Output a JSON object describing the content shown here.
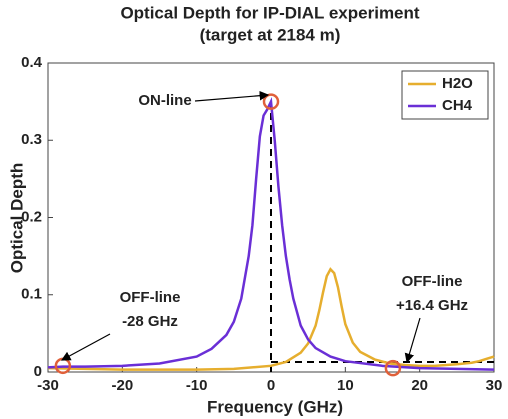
{
  "chart_data": {
    "type": "line",
    "title": [
      "Optical Depth for IP-DIAL experiment",
      "(target at 2184 m)"
    ],
    "xlabel": "Frequency (GHz)",
    "ylabel": "Optical Depth",
    "xlim": [
      -30,
      30
    ],
    "xticks": [
      -30,
      -20,
      -10,
      0,
      10,
      20,
      30
    ],
    "ylim": [
      0,
      0.4
    ],
    "yticks": [
      0,
      0.1,
      0.2,
      0.3,
      0.4
    ],
    "legend": "upper right",
    "series": [
      {
        "name": "H2O",
        "color": "#e6ae2e",
        "x": [
          -30,
          -25,
          -20,
          -15,
          -10,
          -5,
          0,
          2,
          4,
          5,
          6,
          6.5,
          7,
          7.5,
          8,
          8.5,
          9,
          9.5,
          10,
          11,
          12,
          14,
          16,
          18,
          20,
          22,
          25,
          27,
          28,
          29,
          30
        ],
        "values": [
          0.005,
          0.004,
          0.003,
          0.003,
          0.003,
          0.004,
          0.008,
          0.013,
          0.025,
          0.037,
          0.06,
          0.08,
          0.103,
          0.124,
          0.133,
          0.128,
          0.11,
          0.085,
          0.062,
          0.038,
          0.026,
          0.016,
          0.011,
          0.009,
          0.008,
          0.008,
          0.01,
          0.012,
          0.014,
          0.017,
          0.02
        ]
      },
      {
        "name": "CH4",
        "color": "#6a2fd6",
        "x": [
          -30,
          -28,
          -25,
          -20,
          -15,
          -10,
          -8,
          -6,
          -5,
          -4,
          -3,
          -2.5,
          -2,
          -1.5,
          -1,
          -0.5,
          0,
          0.5,
          1,
          1.5,
          2,
          2.5,
          3,
          4,
          5,
          6,
          8,
          10,
          15,
          20,
          25,
          30
        ],
        "values": [
          0.006,
          0.007,
          0.007,
          0.008,
          0.011,
          0.02,
          0.03,
          0.048,
          0.065,
          0.095,
          0.15,
          0.19,
          0.25,
          0.305,
          0.332,
          0.34,
          0.35,
          0.3,
          0.24,
          0.19,
          0.15,
          0.12,
          0.095,
          0.06,
          0.042,
          0.031,
          0.02,
          0.014,
          0.008,
          0.005,
          0.004,
          0.003
        ]
      }
    ],
    "markers": [
      {
        "x": -28,
        "y": 0.008
      },
      {
        "x": 0,
        "y": 0.35
      },
      {
        "x": 16.4,
        "y": 0.005
      }
    ],
    "dashed_lines": [
      {
        "x": [
          0,
          0
        ],
        "y": [
          0,
          0.35
        ]
      },
      {
        "x": [
          0,
          30
        ],
        "y": [
          0.013,
          0.013
        ]
      }
    ],
    "annotations": [
      [
        "ON-line"
      ],
      [
        "OFF-line",
        "-28 GHz"
      ],
      [
        "OFF-line",
        "+16.4 GHz"
      ]
    ]
  }
}
